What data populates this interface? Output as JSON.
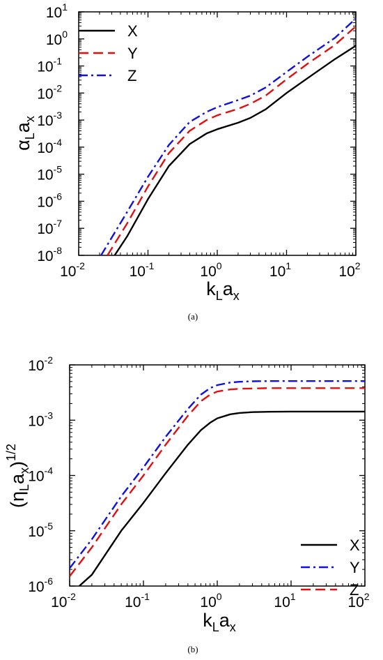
{
  "panels": [
    {
      "caption": "(a)",
      "ylabel": "α_L a_x",
      "xlabel": "k_L a_x",
      "chart_data": {
        "type": "line",
        "xscale": "log",
        "yscale": "log",
        "xlim": [
          0.01,
          100
        ],
        "ylim": [
          1e-08,
          10
        ],
        "xticks": [
          0.01,
          0.1,
          1,
          10,
          100
        ],
        "yticks": [
          1e-08,
          1e-07,
          1e-06,
          1e-05,
          0.0001,
          0.001,
          0.01,
          0.1,
          1,
          10
        ],
        "legend_position": "top-left",
        "series": [
          {
            "name": "X",
            "color": "#000000",
            "dash": "solid",
            "x": [
              0.033,
              0.05,
              0.1,
              0.2,
              0.4,
              0.7,
              1.0,
              2.0,
              3.0,
              5.0,
              10,
              20,
              50,
              100
            ],
            "y": [
              1e-08,
              5e-08,
              1.2e-06,
              2e-05,
              0.00013,
              0.00032,
              0.00046,
              0.0008,
              0.0012,
              0.0025,
              0.01,
              0.035,
              0.18,
              0.56
            ]
          },
          {
            "name": "Y",
            "color": "#e01010",
            "dash": "dashed",
            "x": [
              0.026,
              0.05,
              0.1,
              0.2,
              0.4,
              0.7,
              1.0,
              2.0,
              3.0,
              5.0,
              10,
              20,
              50,
              100
            ],
            "y": [
              1e-08,
              1.5e-07,
              3.5e-06,
              6e-05,
              0.0004,
              0.001,
              0.0015,
              0.0026,
              0.004,
              0.008,
              0.032,
              0.12,
              0.6,
              2.9
            ]
          },
          {
            "name": "Z",
            "color": "#1010e0",
            "dash": "dashdot",
            "x": [
              0.021,
              0.05,
              0.1,
              0.2,
              0.4,
              0.7,
              1.0,
              2.0,
              3.0,
              5.0,
              10,
              20,
              50,
              100
            ],
            "y": [
              1e-08,
              4e-07,
              8e-06,
              0.00012,
              0.00085,
              0.002,
              0.003,
              0.0055,
              0.008,
              0.016,
              0.06,
              0.22,
              1.1,
              5.7
            ]
          }
        ]
      }
    },
    {
      "caption": "(b)",
      "ylabel": "(η_L a_x)^1/2",
      "xlabel": "k_L a_x",
      "chart_data": {
        "type": "line",
        "xscale": "log",
        "yscale": "log",
        "xlim": [
          0.01,
          100
        ],
        "ylim": [
          1e-06,
          0.01
        ],
        "xticks": [
          0.01,
          0.1,
          1,
          10,
          100
        ],
        "yticks": [
          1e-06,
          1e-05,
          0.0001,
          0.001,
          0.01
        ],
        "legend_position": "bottom-right",
        "series": [
          {
            "name": "X",
            "color": "#000000",
            "dash": "solid",
            "x": [
              0.0135,
              0.02,
              0.05,
              0.1,
              0.2,
              0.4,
              0.6,
              0.8,
              1.0,
              1.5,
              2,
              3,
              5,
              10,
              100
            ],
            "y": [
              1e-06,
              1.6e-06,
              1e-05,
              3.2e-05,
              0.00011,
              0.00036,
              0.00066,
              0.0009,
              0.00108,
              0.00128,
              0.00135,
              0.0014,
              0.00142,
              0.00143,
              0.00143
            ]
          },
          {
            "name": "Y",
            "color": "#1010e0",
            "dash": "dashdot",
            "x": [
              0.01,
              0.02,
              0.05,
              0.1,
              0.2,
              0.4,
              0.6,
              0.8,
              1.0,
              1.5,
              2,
              3,
              5,
              10,
              100
            ],
            "y": [
              2.1e-06,
              7e-06,
              4.2e-05,
              0.00014,
              0.0005,
              0.0016,
              0.0029,
              0.0038,
              0.0043,
              0.0048,
              0.00495,
              0.00505,
              0.0051,
              0.0051,
              0.0051
            ]
          },
          {
            "name": "Z",
            "color": "#e01010",
            "dash": "dashed",
            "x": [
              0.01,
              0.02,
              0.05,
              0.1,
              0.2,
              0.4,
              0.6,
              0.8,
              1.0,
              1.5,
              2,
              3,
              5,
              10,
              100
            ],
            "y": [
              1.5e-06,
              5e-06,
              3e-05,
              0.0001,
              0.00036,
              0.0012,
              0.0022,
              0.0029,
              0.0033,
              0.0036,
              0.0037,
              0.00375,
              0.0038,
              0.0038,
              0.0038
            ]
          }
        ]
      }
    }
  ]
}
